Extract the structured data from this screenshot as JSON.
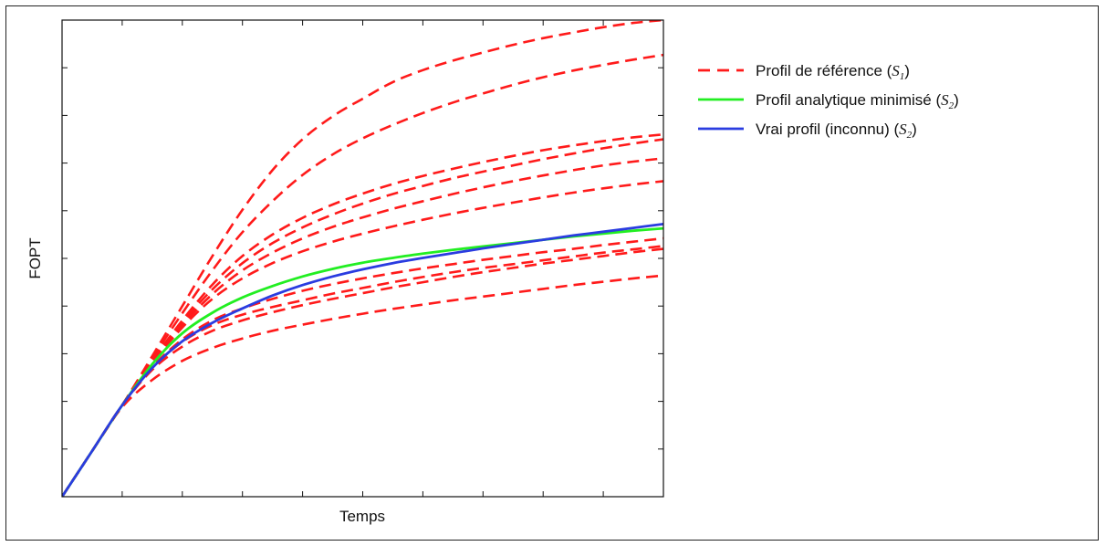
{
  "chart_data": {
    "type": "line",
    "xlabel": "Temps",
    "ylabel": "FOPT",
    "xlim": [
      0,
      10
    ],
    "ylim": [
      0,
      10
    ],
    "x_ticks": [
      1,
      2,
      3,
      4,
      5,
      6,
      7,
      8,
      9
    ],
    "y_ticks": [
      1,
      2,
      3,
      4,
      5,
      6,
      7,
      8,
      9
    ],
    "tick_labels_shown": false,
    "grid": false,
    "legend_position": "right, outside the plot area",
    "x": [
      0,
      0.5,
      1,
      1.5,
      2,
      2.5,
      3,
      3.5,
      4,
      4.5,
      5,
      5.5,
      6,
      6.5,
      7,
      7.5,
      8,
      8.5,
      9,
      9.5,
      10
    ],
    "series": [
      {
        "name": "Profil de référence (S1)",
        "legend_label": "Profil de référence (",
        "legend_math": "S",
        "legend_sub": "1",
        "legend_close": ")",
        "color": "#ff1a1a",
        "style": "dashed",
        "lines": [
          [
            0.0,
            0.96,
            1.92,
            2.95,
            4.0,
            5.05,
            6.02,
            6.85,
            7.5,
            7.98,
            8.35,
            8.7,
            8.95,
            9.15,
            9.32,
            9.48,
            9.62,
            9.74,
            9.85,
            9.94,
            10.0
          ],
          [
            0.0,
            0.96,
            1.92,
            2.9,
            3.85,
            4.75,
            5.55,
            6.2,
            6.75,
            7.18,
            7.52,
            7.8,
            8.05,
            8.27,
            8.46,
            8.64,
            8.8,
            8.94,
            9.06,
            9.17,
            9.27
          ],
          [
            0.0,
            0.96,
            1.92,
            2.85,
            3.7,
            4.45,
            5.05,
            5.5,
            5.85,
            6.13,
            6.36,
            6.56,
            6.73,
            6.88,
            7.02,
            7.15,
            7.27,
            7.37,
            7.46,
            7.54,
            7.6
          ],
          [
            0.0,
            0.96,
            1.92,
            2.85,
            3.65,
            4.35,
            4.9,
            5.32,
            5.65,
            5.92,
            6.15,
            6.35,
            6.52,
            6.68,
            6.82,
            6.95,
            7.08,
            7.2,
            7.31,
            7.41,
            7.5
          ],
          [
            0.0,
            0.96,
            1.92,
            2.82,
            3.6,
            4.25,
            4.75,
            5.12,
            5.42,
            5.66,
            5.86,
            6.04,
            6.2,
            6.35,
            6.49,
            6.62,
            6.74,
            6.85,
            6.95,
            7.03,
            7.1
          ],
          [
            0.0,
            0.96,
            1.92,
            2.8,
            3.55,
            4.15,
            4.58,
            4.9,
            5.15,
            5.35,
            5.52,
            5.67,
            5.81,
            5.94,
            6.06,
            6.17,
            6.28,
            6.38,
            6.47,
            6.55,
            6.62
          ],
          [
            0.0,
            0.96,
            1.92,
            2.72,
            3.3,
            3.7,
            3.95,
            4.15,
            4.32,
            4.46,
            4.58,
            4.69,
            4.79,
            4.88,
            4.97,
            5.05,
            5.13,
            5.2,
            5.28,
            5.35,
            5.42
          ],
          [
            0.0,
            0.96,
            1.92,
            2.7,
            3.25,
            3.6,
            3.82,
            3.98,
            4.12,
            4.26,
            4.38,
            4.5,
            4.61,
            4.71,
            4.8,
            4.88,
            4.96,
            5.04,
            5.12,
            5.19,
            5.26
          ],
          [
            0.0,
            0.96,
            1.92,
            2.66,
            3.15,
            3.48,
            3.7,
            3.87,
            4.02,
            4.15,
            4.27,
            4.39,
            4.5,
            4.61,
            4.71,
            4.8,
            4.89,
            4.97,
            5.05,
            5.13,
            5.2
          ],
          [
            0.0,
            0.96,
            1.88,
            2.45,
            2.85,
            3.12,
            3.32,
            3.48,
            3.61,
            3.73,
            3.84,
            3.94,
            4.03,
            4.12,
            4.2,
            4.28,
            4.36,
            4.44,
            4.51,
            4.58,
            4.64
          ]
        ]
      },
      {
        "name": "Profil analytique minimisé (S2)",
        "legend_label": "Profil analytique minimisé (",
        "legend_math": "S",
        "legend_sub": "2",
        "legend_close": ")",
        "color": "#22ee22",
        "style": "solid",
        "values": [
          0.0,
          0.96,
          1.92,
          2.78,
          3.43,
          3.86,
          4.18,
          4.42,
          4.62,
          4.78,
          4.91,
          5.01,
          5.1,
          5.18,
          5.25,
          5.32,
          5.39,
          5.46,
          5.52,
          5.58,
          5.63
        ]
      },
      {
        "name": "Vrai profil (inconnu) (S2)",
        "legend_label": "Vrai profil (inconnu) (",
        "legend_math": "S",
        "legend_sub": "2",
        "legend_close": ")",
        "color": "#2a3ce0",
        "style": "solid",
        "values": [
          0.0,
          0.96,
          1.92,
          2.7,
          3.26,
          3.65,
          3.95,
          4.22,
          4.44,
          4.62,
          4.77,
          4.9,
          5.01,
          5.11,
          5.21,
          5.3,
          5.39,
          5.48,
          5.56,
          5.64,
          5.72
        ]
      }
    ]
  }
}
